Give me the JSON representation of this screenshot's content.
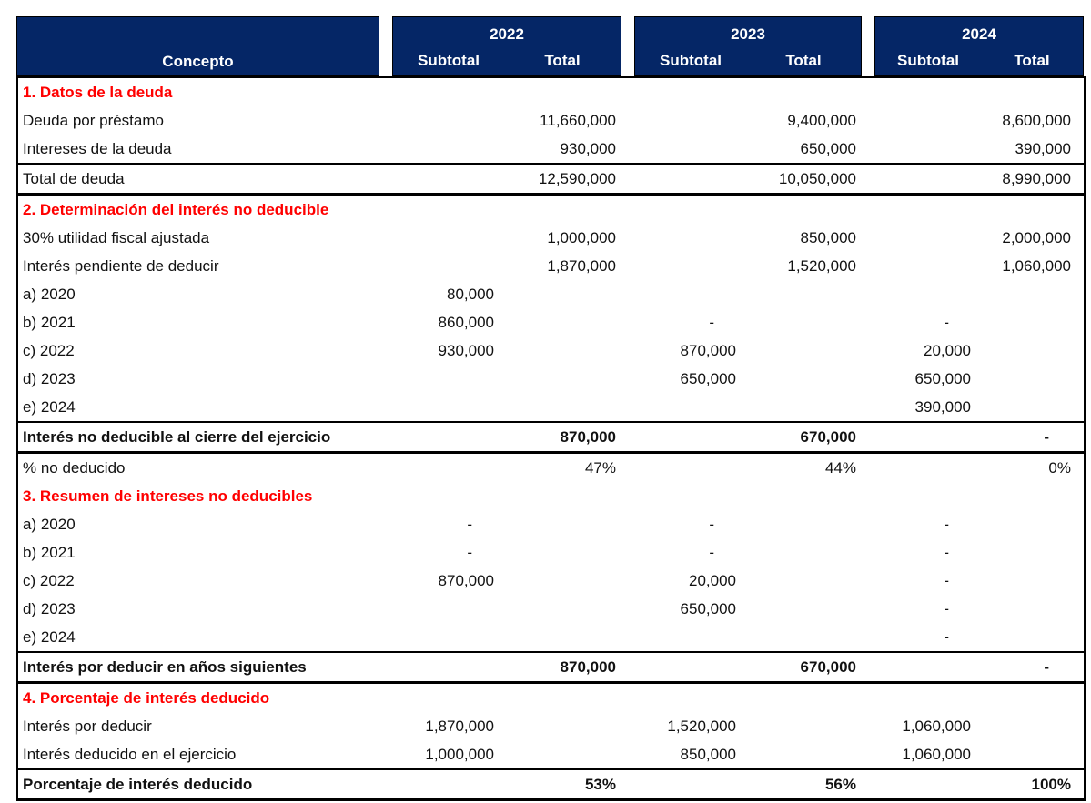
{
  "table": {
    "header": {
      "concept_label": "Concepto",
      "year_groups": [
        {
          "year": "2022",
          "subtotal_label": "Subtotal",
          "total_label": "Total"
        },
        {
          "year": "2023",
          "subtotal_label": "Subtotal",
          "total_label": "Total"
        },
        {
          "year": "2024",
          "subtotal_label": "Subtotal",
          "total_label": "Total"
        }
      ]
    },
    "columns_per_year": [
      "Subtotal",
      "Total"
    ],
    "rows": [
      {
        "label": "1. Datos de la deuda",
        "type": "section",
        "border": "",
        "cells": [
          "",
          "",
          "",
          "",
          "",
          ""
        ]
      },
      {
        "label": "Deuda por préstamo",
        "type": "item",
        "border": "",
        "cells": [
          "",
          "11,660,000",
          "",
          "9,400,000",
          "",
          "8,600,000"
        ]
      },
      {
        "label": "Intereses de la deuda",
        "type": "item",
        "border": "thin",
        "cells": [
          "",
          "930,000",
          "",
          "650,000",
          "",
          "390,000"
        ]
      },
      {
        "label": "Total de deuda",
        "type": "item",
        "border": "thick",
        "cells": [
          "",
          "12,590,000",
          "",
          "10,050,000",
          "",
          "8,990,000"
        ]
      },
      {
        "label": "2. Determinación del interés no deducible",
        "type": "section",
        "border": "",
        "cells": [
          "",
          "",
          "",
          "",
          "",
          ""
        ]
      },
      {
        "label": "30% utilidad fiscal ajustada",
        "type": "item",
        "border": "",
        "cells": [
          "",
          "1,000,000",
          "",
          "850,000",
          "",
          "2,000,000"
        ]
      },
      {
        "label": "Interés pendiente de deducir",
        "type": "item",
        "border": "",
        "cells": [
          "",
          "1,870,000",
          "",
          "1,520,000",
          "",
          "1,060,000"
        ]
      },
      {
        "label": "a) 2020",
        "type": "item",
        "border": "",
        "cells": [
          "80,000",
          "",
          "",
          "",
          "",
          ""
        ]
      },
      {
        "label": "b) 2021",
        "type": "item",
        "border": "",
        "cells": [
          "860,000",
          "",
          "-",
          "",
          "-",
          ""
        ]
      },
      {
        "label": "c) 2022",
        "type": "item",
        "border": "",
        "cells": [
          "930,000",
          "",
          "870,000",
          "",
          "20,000",
          ""
        ]
      },
      {
        "label": "d) 2023",
        "type": "item",
        "border": "",
        "cells": [
          "",
          "",
          "650,000",
          "",
          "650,000",
          ""
        ]
      },
      {
        "label": "e) 2024",
        "type": "item",
        "border": "thin",
        "cells": [
          "",
          "",
          "",
          "",
          "390,000",
          ""
        ]
      },
      {
        "label": "Interés no deducible al cierre del ejercicio",
        "type": "summary",
        "border": "thick",
        "cells": [
          "",
          "870,000",
          "",
          "670,000",
          "",
          "-"
        ]
      },
      {
        "label": "% no deducido",
        "type": "item",
        "border": "",
        "cells": [
          "",
          "47%",
          "",
          "44%",
          "",
          "0%"
        ]
      },
      {
        "label": "3. Resumen de intereses no deducibles",
        "type": "section",
        "border": "",
        "cells": [
          "",
          "",
          "",
          "",
          "",
          ""
        ]
      },
      {
        "label": "a) 2020",
        "type": "item",
        "border": "",
        "cells": [
          "-",
          "",
          "-",
          "",
          "-",
          ""
        ]
      },
      {
        "label": "b) 2021",
        "type": "item",
        "border": "",
        "cells": [
          "-",
          "",
          "-",
          "",
          "-",
          ""
        ]
      },
      {
        "label": "c) 2022",
        "type": "item",
        "border": "",
        "cells": [
          "870,000",
          "",
          "20,000",
          "",
          "-",
          ""
        ]
      },
      {
        "label": "d) 2023",
        "type": "item",
        "border": "",
        "cells": [
          "",
          "",
          "650,000",
          "",
          "-",
          ""
        ]
      },
      {
        "label": "e) 2024",
        "type": "item",
        "border": "thin",
        "cells": [
          "",
          "",
          "",
          "",
          "-",
          ""
        ]
      },
      {
        "label": "Interés por deducir en años siguientes",
        "type": "summary",
        "border": "thick",
        "cells": [
          "",
          "870,000",
          "",
          "670,000",
          "",
          "-"
        ]
      },
      {
        "label": "4. Porcentaje de interés deducido",
        "type": "section",
        "border": "",
        "cells": [
          "",
          "",
          "",
          "",
          "",
          ""
        ]
      },
      {
        "label": "Interés por deducir",
        "type": "item",
        "border": "",
        "cells": [
          "1,870,000",
          "",
          "1,520,000",
          "",
          "1,060,000",
          ""
        ]
      },
      {
        "label": "Interés deducido en el ejercicio",
        "type": "item",
        "border": "thin",
        "cells": [
          "1,000,000",
          "",
          "850,000",
          "",
          "1,060,000",
          ""
        ]
      },
      {
        "label": "Porcentaje de interés deducido",
        "type": "summary",
        "border": "",
        "cells": [
          "",
          "53%",
          "",
          "56%",
          "",
          "100%"
        ]
      }
    ]
  },
  "artifacts": {
    "stray_mark": "_"
  },
  "colors": {
    "header_background": "#052666",
    "header_text": "#ffffff",
    "section_title": "#ff0000",
    "body_text": "#111111",
    "grid_line": "#000000"
  }
}
